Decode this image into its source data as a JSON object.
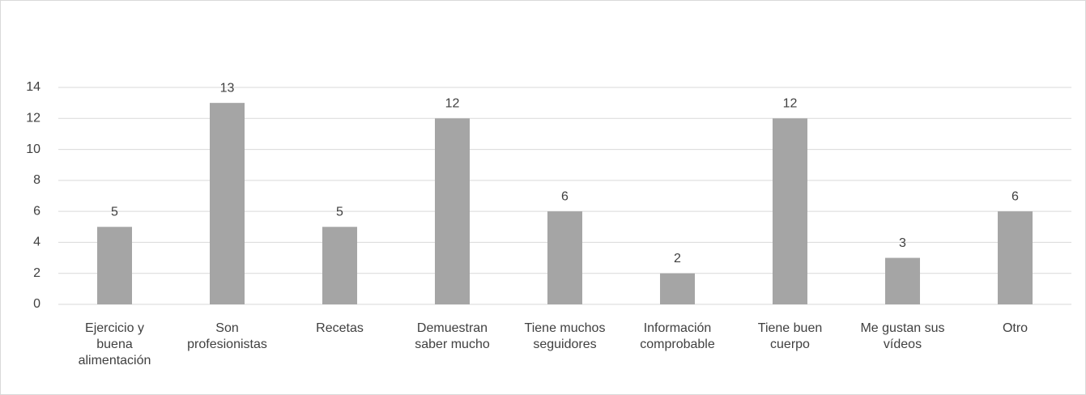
{
  "chart_data": {
    "type": "bar",
    "categories": [
      "Ejercicio y buena alimentación",
      "Son profesionistas",
      "Recetas",
      "Demuestran saber mucho",
      "Tiene muchos seguidores",
      "Información comprobable",
      "Tiene buen cuerpo",
      "Me gustan sus vídeos",
      "Otro"
    ],
    "values": [
      5,
      13,
      5,
      12,
      6,
      2,
      12,
      3,
      6
    ],
    "color": "#a5a5a5",
    "ylim": [
      0,
      14
    ],
    "yticks": [
      0,
      2,
      4,
      6,
      8,
      10,
      12,
      14
    ],
    "grid": true
  }
}
